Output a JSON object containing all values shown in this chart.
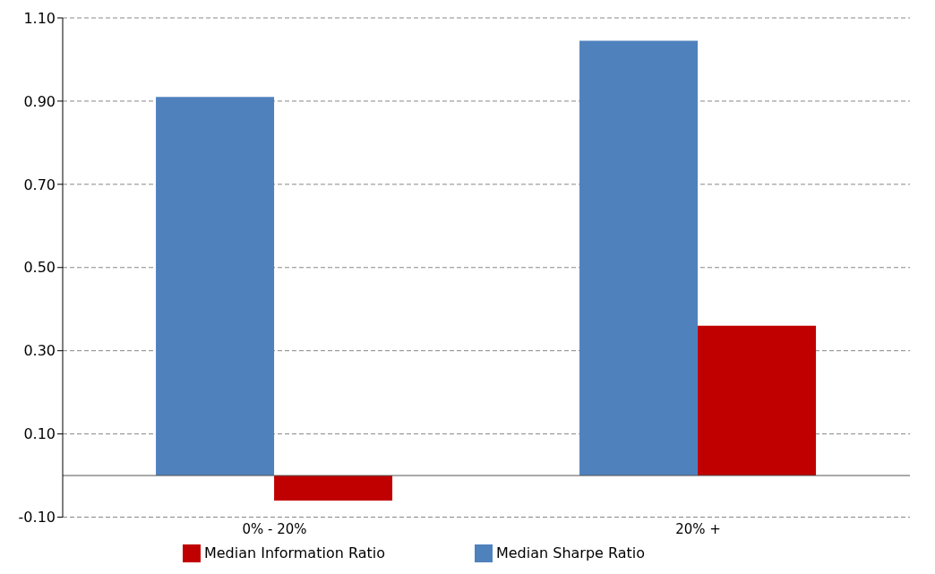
{
  "chart_data": {
    "type": "bar",
    "categories": [
      "0% - 20%",
      "20% +"
    ],
    "series": [
      {
        "name": "Median Sharpe Ratio",
        "color": "#4f81bd",
        "values": [
          0.91,
          1.045
        ]
      },
      {
        "name": "Median Information Ratio",
        "color": "#c00000",
        "values": [
          -0.06,
          0.36
        ]
      }
    ],
    "ylim": [
      -0.1,
      1.1
    ],
    "yticks": [
      {
        "value": -0.1,
        "label": "-0.10"
      },
      {
        "value": 0.1,
        "label": "0.10"
      },
      {
        "value": 0.3,
        "label": "0.30"
      },
      {
        "value": 0.5,
        "label": "0.50"
      },
      {
        "value": 0.7,
        "label": "0.70"
      },
      {
        "value": 0.9,
        "label": "0.90"
      },
      {
        "value": 1.1,
        "label": "1.10"
      }
    ],
    "grid": "y",
    "legend": "bottom"
  }
}
